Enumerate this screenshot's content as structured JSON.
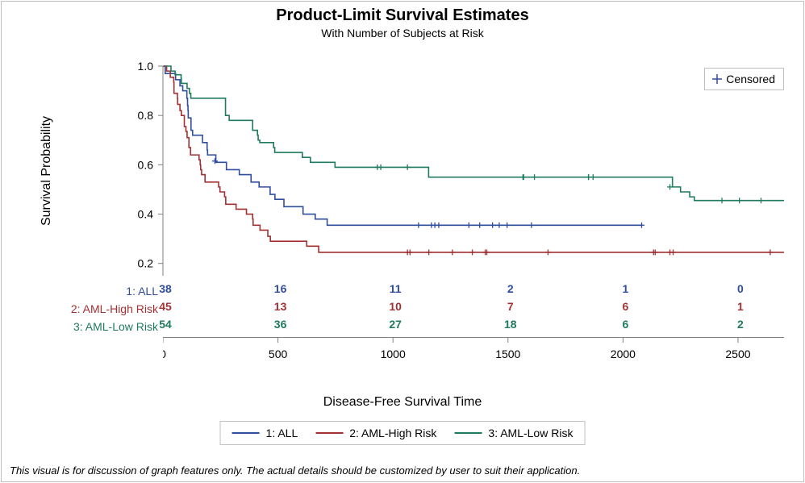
{
  "title": "Product-Limit Survival Estimates",
  "subtitle": "With Number of Subjects at Risk",
  "ylabel": "Survival Probability",
  "xlabel": "Disease-Free Survival Time",
  "disclaimer": "This visual is for discussion of graph features only.  The actual details should be customized by user to suit their application.",
  "censored_label": "Censored",
  "chart": {
    "type": "kaplan-meier-step",
    "xlim": [
      0,
      2700
    ],
    "ylim": [
      0.15,
      1.0
    ],
    "xticks": [
      0,
      500,
      1000,
      1500,
      2000,
      2500
    ],
    "yticks": [
      0.2,
      0.4,
      0.6,
      0.8,
      1.0
    ],
    "xtick_labels": [
      "0",
      "500",
      "1000",
      "1500",
      "2000",
      "2500"
    ],
    "ytick_labels": [
      "0.2",
      "0.4",
      "0.6",
      "0.8",
      "1.0"
    ],
    "background_color": "#ffffff",
    "axis_color": "#808080",
    "tick_fontsize": 14,
    "line_width": 1.6,
    "censor_marker": "plus",
    "censor_marker_size": 7
  },
  "series": [
    {
      "id": "ALL",
      "label": "1: ALL",
      "color": "#2f4e9e",
      "steps": [
        [
          1,
          1.0
        ],
        [
          10,
          0.97
        ],
        [
          55,
          0.945
        ],
        [
          74,
          0.92
        ],
        [
          86,
          0.9
        ],
        [
          104,
          0.87
        ],
        [
          107,
          0.84
        ],
        [
          109,
          0.82
        ],
        [
          110,
          0.79
        ],
        [
          122,
          0.74
        ],
        [
          129,
          0.72
        ],
        [
          172,
          0.69
        ],
        [
          192,
          0.66
        ],
        [
          194,
          0.64
        ],
        [
          230,
          0.61
        ],
        [
          276,
          0.58
        ],
        [
          332,
          0.56
        ],
        [
          383,
          0.53
        ],
        [
          418,
          0.51
        ],
        [
          466,
          0.48
        ],
        [
          487,
          0.46
        ],
        [
          526,
          0.43
        ],
        [
          609,
          0.4
        ],
        [
          662,
          0.38
        ],
        [
          714,
          0.355
        ],
        [
          2081,
          0.355
        ]
      ],
      "censored": [
        [
          1377,
          0.355
        ],
        [
          226,
          0.615
        ],
        [
          1111,
          0.355
        ],
        [
          1167,
          0.355
        ],
        [
          1182,
          0.355
        ],
        [
          1199,
          0.355
        ],
        [
          1330,
          0.355
        ],
        [
          1433,
          0.355
        ],
        [
          1462,
          0.355
        ],
        [
          1496,
          0.355
        ],
        [
          1602,
          0.355
        ],
        [
          2081,
          0.355
        ]
      ]
    },
    {
      "id": "AML-High",
      "label": "2: AML-High Risk",
      "color": "#a33033",
      "steps": [
        [
          2,
          1.0
        ],
        [
          16,
          0.98
        ],
        [
          32,
          0.955
        ],
        [
          47,
          0.935
        ],
        [
          48,
          0.89
        ],
        [
          63,
          0.87
        ],
        [
          64,
          0.845
        ],
        [
          74,
          0.82
        ],
        [
          80,
          0.8
        ],
        [
          93,
          0.755
        ],
        [
          100,
          0.735
        ],
        [
          105,
          0.71
        ],
        [
          113,
          0.67
        ],
        [
          120,
          0.64
        ],
        [
          157,
          0.62
        ],
        [
          162,
          0.6
        ],
        [
          164,
          0.58
        ],
        [
          168,
          0.56
        ],
        [
          183,
          0.53
        ],
        [
          242,
          0.51
        ],
        [
          248,
          0.49
        ],
        [
          268,
          0.47
        ],
        [
          273,
          0.44
        ],
        [
          318,
          0.42
        ],
        [
          363,
          0.4
        ],
        [
          390,
          0.38
        ],
        [
          392,
          0.355
        ],
        [
          422,
          0.335
        ],
        [
          456,
          0.31
        ],
        [
          467,
          0.29
        ],
        [
          625,
          0.27
        ],
        [
          677,
          0.245
        ],
        [
          2700,
          0.245
        ]
      ],
      "censored": [
        [
          2133,
          0.245
        ],
        [
          1063,
          0.245
        ],
        [
          1074,
          0.245
        ],
        [
          2140,
          0.245
        ],
        [
          1156,
          0.245
        ],
        [
          1258,
          0.245
        ],
        [
          2204,
          0.245
        ],
        [
          1674,
          0.245
        ],
        [
          2218,
          0.245
        ],
        [
          1345,
          0.245
        ],
        [
          1401,
          0.245
        ],
        [
          1408,
          0.245
        ],
        [
          2640,
          0.245
        ]
      ]
    },
    {
      "id": "AML-Low",
      "label": "3: AML-Low Risk",
      "color": "#1f7a5f",
      "steps": [
        [
          10,
          1.0
        ],
        [
          35,
          0.98
        ],
        [
          53,
          0.965
        ],
        [
          79,
          0.95
        ],
        [
          80,
          0.93
        ],
        [
          105,
          0.91
        ],
        [
          115,
          0.89
        ],
        [
          121,
          0.87
        ],
        [
          248,
          0.87
        ],
        [
          272,
          0.8
        ],
        [
          288,
          0.78
        ],
        [
          381,
          0.78
        ],
        [
          390,
          0.74
        ],
        [
          411,
          0.72
        ],
        [
          414,
          0.7
        ],
        [
          421,
          0.69
        ],
        [
          481,
          0.67
        ],
        [
          486,
          0.65
        ],
        [
          606,
          0.63
        ],
        [
          641,
          0.61
        ],
        [
          748,
          0.59
        ],
        [
          1150,
          0.59
        ],
        [
          1155,
          0.55
        ],
        [
          2200,
          0.55
        ],
        [
          2215,
          0.51
        ],
        [
          2250,
          0.49
        ],
        [
          2290,
          0.47
        ],
        [
          2310,
          0.455
        ],
        [
          2700,
          0.455
        ]
      ],
      "censored": [
        [
          932,
          0.59
        ],
        [
          1850,
          0.55
        ],
        [
          947,
          0.59
        ],
        [
          1870,
          0.55
        ],
        [
          1063,
          0.59
        ],
        [
          1565,
          0.55
        ],
        [
          1568,
          0.55
        ],
        [
          2204,
          0.51
        ],
        [
          1615,
          0.55
        ],
        [
          1850,
          0.55
        ],
        [
          2430,
          0.455
        ],
        [
          2506,
          0.455
        ],
        [
          2600,
          0.455
        ]
      ]
    }
  ],
  "risk_table": {
    "at": [
      0,
      500,
      1000,
      1500,
      2000,
      2500
    ],
    "rows": [
      {
        "label": "1: ALL",
        "color": "#2f4e9e",
        "values": [
          "38",
          "16",
          "11",
          "2",
          "1",
          "0"
        ]
      },
      {
        "label": "2: AML-High Risk",
        "color": "#a33033",
        "values": [
          "45",
          "13",
          "10",
          "7",
          "6",
          "1"
        ]
      },
      {
        "label": "3: AML-Low Risk",
        "color": "#1f7a5f",
        "values": [
          "54",
          "36",
          "27",
          "18",
          "6",
          "2"
        ]
      }
    ]
  }
}
